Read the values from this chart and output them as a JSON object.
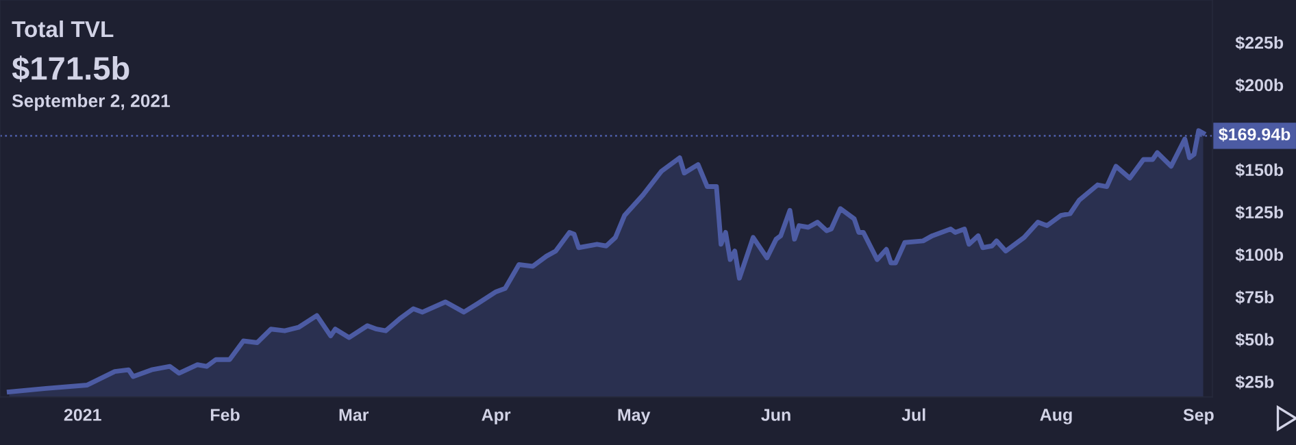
{
  "chart_data": {
    "type": "area",
    "title": "Total TVL",
    "subtitle": "$171.5b",
    "annotations": [
      "September 2, 2021"
    ],
    "x": [
      "2020-12-16",
      "2020-12-24",
      "2021-01-02",
      "2021-01-08",
      "2021-01-11",
      "2021-01-12",
      "2021-01-16",
      "2021-01-20",
      "2021-01-22",
      "2021-01-26",
      "2021-01-28",
      "2021-01-30",
      "2021-02-02",
      "2021-02-05",
      "2021-02-08",
      "2021-02-11",
      "2021-02-14",
      "2021-02-17",
      "2021-02-21",
      "2021-02-24",
      "2021-02-25",
      "2021-02-28",
      "2021-03-04",
      "2021-03-06",
      "2021-03-08",
      "2021-03-11",
      "2021-03-14",
      "2021-03-16",
      "2021-03-21",
      "2021-03-25",
      "2021-03-28",
      "2021-04-01",
      "2021-04-03",
      "2021-04-06",
      "2021-04-09",
      "2021-04-12",
      "2021-04-14",
      "2021-04-17",
      "2021-04-18",
      "2021-04-19",
      "2021-04-23",
      "2021-04-25",
      "2021-04-27",
      "2021-04-29",
      "2021-05-03",
      "2021-05-07",
      "2021-05-11",
      "2021-05-12",
      "2021-05-15",
      "2021-05-17",
      "2021-05-19",
      "2021-05-20",
      "2021-05-21",
      "2021-05-22",
      "2021-05-23",
      "2021-05-24",
      "2021-05-27",
      "2021-05-30",
      "2021-06-01",
      "2021-06-02",
      "2021-06-04",
      "2021-06-05",
      "2021-06-06",
      "2021-06-08",
      "2021-06-10",
      "2021-06-12",
      "2021-06-13",
      "2021-06-15",
      "2021-06-18",
      "2021-06-19",
      "2021-06-20",
      "2021-06-23",
      "2021-06-25",
      "2021-06-26",
      "2021-06-27",
      "2021-06-29",
      "2021-07-03",
      "2021-07-05",
      "2021-07-09",
      "2021-07-10",
      "2021-07-12",
      "2021-07-13",
      "2021-07-15",
      "2021-07-16",
      "2021-07-18",
      "2021-07-19",
      "2021-07-21",
      "2021-07-25",
      "2021-07-28",
      "2021-07-30",
      "2021-08-02",
      "2021-08-04",
      "2021-08-06",
      "2021-08-10",
      "2021-08-12",
      "2021-08-14",
      "2021-08-17",
      "2021-08-20",
      "2021-08-22",
      "2021-08-23",
      "2021-08-26",
      "2021-08-29",
      "2021-08-30",
      "2021-08-31",
      "2021-09-01",
      "2021-09-02"
    ],
    "series": [
      {
        "color": "#4c5ba3",
        "values": [
          19,
          21,
          23,
          31,
          32,
          28,
          32,
          34,
          30,
          35,
          34,
          38,
          38,
          49,
          48,
          56,
          55,
          57,
          64,
          52,
          56,
          51,
          58,
          56,
          55,
          62,
          68,
          66,
          72,
          66,
          71,
          78,
          80,
          94,
          93,
          99,
          102,
          113,
          112,
          104,
          106,
          105,
          110,
          123,
          135,
          149,
          157,
          148,
          153,
          140,
          140,
          106,
          113,
          97,
          102,
          86,
          110,
          98,
          109,
          111,
          126,
          109,
          117,
          116,
          119,
          114,
          115,
          127,
          121,
          113,
          113,
          97,
          103,
          95,
          95,
          107,
          108,
          111,
          115,
          113,
          115,
          106,
          111,
          104,
          105,
          108,
          102,
          110,
          119,
          117,
          123,
          124,
          132,
          141,
          140,
          152,
          145,
          156,
          156,
          160,
          152,
          168,
          157,
          159,
          173,
          171.5
        ]
      }
    ],
    "xlim": [
      "2020-12-14",
      "2021-09-04"
    ],
    "xticks": [
      {
        "value": "2021-01-01",
        "label": "2021"
      },
      {
        "value": "2021-02-01",
        "label": "Feb"
      },
      {
        "value": "2021-03-01",
        "label": "Mar"
      },
      {
        "value": "2021-04-01",
        "label": "Apr"
      },
      {
        "value": "2021-05-01",
        "label": "May"
      },
      {
        "value": "2021-06-01",
        "label": "Jun"
      },
      {
        "value": "2021-07-01",
        "label": "Jul"
      },
      {
        "value": "2021-08-01",
        "label": "Aug"
      },
      {
        "value": "2021-09-01",
        "label": "Sep"
      }
    ],
    "ylim": [
      16,
      250
    ],
    "yticks": [
      {
        "value": 25,
        "label": "$25b"
      },
      {
        "value": 50,
        "label": "$50b"
      },
      {
        "value": 75,
        "label": "$75b"
      },
      {
        "value": 100,
        "label": "$100b"
      },
      {
        "value": 125,
        "label": "$125b"
      },
      {
        "value": 150,
        "label": "$150b"
      },
      {
        "value": 200,
        "label": "$200b"
      },
      {
        "value": 225,
        "label": "$225b"
      }
    ],
    "ref_lines": [
      {
        "axis": "y",
        "value": 169.94,
        "label": "$169.94b",
        "color": "#4c5ba3",
        "line_style": "dotted"
      }
    ],
    "grid": false,
    "legend": false
  }
}
